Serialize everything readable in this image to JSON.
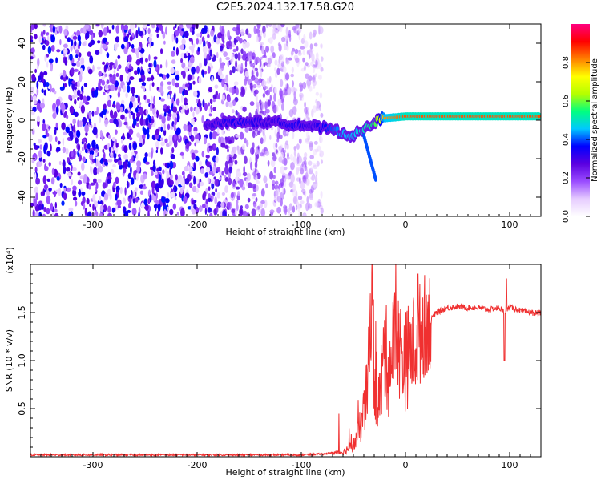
{
  "title": "C2E5.2024.132.17.58.G20",
  "chart_data": [
    {
      "type": "heatmap",
      "title": "C2E5.2024.132.17.58.G20",
      "xlabel": "Height of straight line (km)",
      "ylabel": "Frequency (Hz)",
      "xlim": [
        -360,
        130
      ],
      "ylim": [
        -50,
        50
      ],
      "xticks": [
        -300,
        -200,
        -100,
        0,
        100
      ],
      "yticks": [
        -40,
        -20,
        0,
        20,
        40
      ],
      "colorbar": {
        "label": "Normalized spectral amplitude",
        "ticks": [
          0.0,
          0.2,
          0.4,
          0.6,
          0.8
        ],
        "tick_labels": [
          "0.0",
          "0.2",
          "0.4",
          "0.6",
          "0.8"
        ],
        "range": [
          0,
          1
        ],
        "colormap": [
          "#ffffff",
          "#e6ccff",
          "#9a4cff",
          "#5a00e0",
          "#0000ff",
          "#00c8ff",
          "#00ff80",
          "#b4ff00",
          "#ffff00",
          "#ff8000",
          "#ff0000",
          "#ff0080"
        ]
      },
      "features": {
        "noise_region_x": [
          -360,
          -80
        ],
        "signal_band": {
          "x": [
            -190,
            -160,
            -130,
            -110,
            -90,
            -70,
            -60,
            -50,
            -40,
            -30,
            -20,
            0,
            50,
            100,
            130
          ],
          "freq": [
            -2,
            -1,
            -1,
            -2,
            -3,
            -5,
            -7,
            -8,
            -5,
            -1,
            1,
            2,
            2,
            2,
            2
          ],
          "amplitude": [
            0.3,
            0.35,
            0.3,
            0.35,
            0.3,
            0.4,
            0.45,
            0.45,
            0.5,
            0.55,
            0.8,
            0.85,
            0.85,
            0.85,
            0.85
          ]
        }
      },
      "grid": false
    },
    {
      "type": "line",
      "xlabel": "Height of straight line (km)",
      "ylabel": "SNR (10 * v/v)",
      "yscale_label": "(x10⁴)",
      "xlim": [
        -360,
        130
      ],
      "ylim": [
        0,
        2.0
      ],
      "xticks": [
        -300,
        -200,
        -100,
        0,
        100
      ],
      "yticks": [
        0.5,
        1.0,
        1.5
      ],
      "ytick_labels": [
        "0.5",
        "1.0",
        "1.5"
      ],
      "series": [
        {
          "color": "#f03030",
          "x": [
            -360,
            -200,
            -100,
            -80,
            -60,
            -50,
            -45,
            -40,
            -35,
            -32,
            -30,
            -25,
            -20,
            -15,
            -10,
            -5,
            0,
            5,
            10,
            20,
            30,
            40,
            50,
            60,
            70,
            80,
            90,
            95,
            100,
            110,
            120,
            130
          ],
          "y": [
            0.02,
            0.02,
            0.02,
            0.03,
            0.05,
            0.12,
            0.25,
            0.45,
            0.9,
            1.9,
            0.8,
            0.6,
            1.1,
            0.9,
            1.3,
            1.1,
            1.0,
            1.1,
            1.2,
            1.4,
            1.5,
            1.55,
            1.56,
            1.55,
            1.55,
            1.53,
            1.55,
            1.5,
            1.56,
            1.52,
            1.5,
            1.49
          ]
        }
      ],
      "grid": false
    }
  ]
}
